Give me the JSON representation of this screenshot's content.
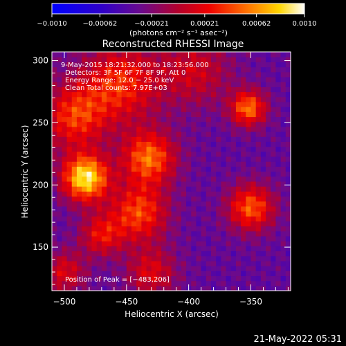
{
  "colorbar": {
    "ticks": [
      -0.001,
      -0.00062,
      -0.00021,
      0.00021,
      0.00062,
      0.001
    ],
    "tick_labels": [
      "−0.0010",
      "−0.00062",
      "−0.00021",
      "0.00021",
      "0.00062",
      "0.0010"
    ],
    "units_label": "(photons cm⁻² s⁻¹ asec⁻²)",
    "range": [
      -0.001,
      0.001
    ]
  },
  "chart_data": {
    "type": "heatmap",
    "title": "Reconstructed RHESSI Image",
    "xlabel": "Heliocentric X (arcsec)",
    "ylabel": "Heliocentric Y (arcsec)",
    "xlim": [
      -510,
      -318
    ],
    "ylim": [
      115,
      307
    ],
    "x_ticks": [
      -500,
      -450,
      -400,
      -350
    ],
    "x_tick_labels": [
      "−500",
      "−450",
      "−400",
      "−350"
    ],
    "y_ticks": [
      150,
      200,
      250,
      300
    ],
    "y_tick_labels": [
      "150",
      "200",
      "250",
      "300"
    ],
    "grid": false,
    "colormap": "rainbow (blue-violet-red-orange-yellow-white)",
    "annotations": [
      "9‑May‑2015 18:21:32.000 to 18:23:56.000",
      "Detectors: 3F 5F 6F 7F 8F 9F, Att 0",
      "Energy Range: 12.0 − 25.0 keV",
      "Clean    Total counts: 7.97E+03"
    ],
    "peak_label": "Position of Peak = [−483,206]",
    "peak_position": [
      -483,
      206
    ],
    "sources": [
      {
        "x": -483,
        "y": 206,
        "sigma": 13,
        "amp": 1.0
      },
      {
        "x": -492,
        "y": 255,
        "sigma": 18,
        "amp": 0.55
      },
      {
        "x": -455,
        "y": 282,
        "sigma": 22,
        "amp": 0.55
      },
      {
        "x": -432,
        "y": 222,
        "sigma": 15,
        "amp": 0.7
      },
      {
        "x": -440,
        "y": 178,
        "sigma": 16,
        "amp": 0.6
      },
      {
        "x": -470,
        "y": 160,
        "sigma": 12,
        "amp": 0.45
      },
      {
        "x": -430,
        "y": 130,
        "sigma": 14,
        "amp": 0.4
      },
      {
        "x": -352,
        "y": 262,
        "sigma": 10,
        "amp": 0.7
      },
      {
        "x": -350,
        "y": 182,
        "sigma": 13,
        "amp": 0.65
      },
      {
        "x": -395,
        "y": 292,
        "sigma": 20,
        "amp": 0.35
      },
      {
        "x": -500,
        "y": 130,
        "sigma": 12,
        "amp": 0.4
      }
    ]
  },
  "footer": {
    "timestamp": "21‑May‑2022 05:31"
  }
}
